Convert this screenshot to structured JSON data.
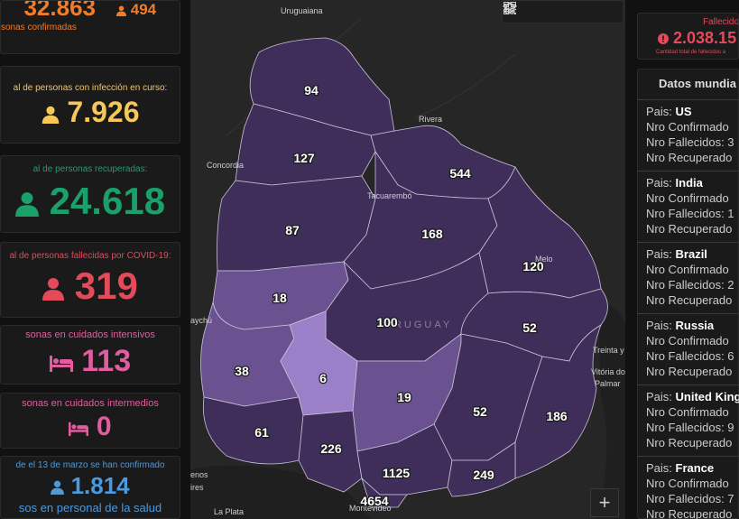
{
  "colors": {
    "confirmed": "#f07c2c",
    "active": "#f6c85a",
    "recovered": "#1aa06a",
    "deceased": "#e34a5a",
    "intensive": "#e05ea0",
    "intermediate": "#e05ea0",
    "health_staff": "#4a9ae0",
    "region_dark": "#3f2d5a",
    "region_mid": "#6a5290",
    "region_light": "#9a80c8"
  },
  "left": {
    "confirmed": {
      "value": "32.863",
      "side_value": "494",
      "caption": "sonas confirmadas",
      "icon": "person-icon"
    },
    "active": {
      "caption": "al de personas con infección en curso:",
      "value": "7.926",
      "icon": "person-icon"
    },
    "recovered": {
      "caption": "al de personas recuperadas:",
      "value": "24.618",
      "icon": "person-icon"
    },
    "deceased": {
      "caption": "al de personas fallecidas por COVID-19:",
      "value": "319",
      "icon": "person-icon"
    },
    "intensive": {
      "caption": "sonas en cuidados intensivos",
      "value": "113",
      "icon": "bed-icon"
    },
    "intermediate": {
      "caption": "sonas en cuidados intermedios",
      "value": "0",
      "icon": "bed-icon"
    },
    "health_staff": {
      "caption": "de el 13 de marzo se han confirmado",
      "value": "1.814",
      "caption2": "sos en personal de la salud",
      "icon": "person-icon"
    }
  },
  "map": {
    "place_labels": {
      "uruguaiana": "Uruguaiana",
      "rivera": "Rivera",
      "concordia": "Concordia",
      "tacuarembo": "Tacuarembó",
      "melo": "Melo",
      "country": "URUGUAY",
      "paysandu": "aychú",
      "treinta": "Treinta y",
      "vitoria": "Vitória do",
      "palmar": "Palmar",
      "buenos": "enos",
      "aires": "ires",
      "laplata": "La Plata",
      "montevideo": "Montevideo"
    },
    "counts": {
      "artigas": "94",
      "salto": "127",
      "rivera": "544",
      "paysandu": "87",
      "tacuarembo": "168",
      "cerrolargo": "120",
      "rionegro": "18",
      "durazno": "100",
      "treintaytres": "52",
      "soriano": "38",
      "flores": "6",
      "florida": "19",
      "lavalleja": "52",
      "rocha": "186",
      "colonia": "61",
      "sanjose": "226",
      "canelones": "1125",
      "maldonado": "249",
      "montevideo": "4654"
    },
    "toolbar": [
      "home-icon",
      "list-icon",
      "layers-icon",
      "qr-icon"
    ],
    "zoom_in_label": "+"
  },
  "right": {
    "deaths": {
      "caption": "Fallecido",
      "value": "2.038.15",
      "sub": "Cantidad total de fallecidos a",
      "icon": "alert-icon"
    },
    "world_title": "Datos mundia",
    "countries": [
      {
        "label": "Pais: ",
        "name": "US",
        "l1": "Nro Confirmado",
        "l2": "Nro Fallecidos: 3",
        "l3": "Nro Recuperado"
      },
      {
        "label": "Pais: ",
        "name": "India",
        "l1": "Nro Confirmado",
        "l2": "Nro Fallecidos: 1",
        "l3": "Nro Recuperado"
      },
      {
        "label": "Pais: ",
        "name": "Brazil",
        "l1": "Nro Confirmado",
        "l2": "Nro Fallecidos: 2",
        "l3": "Nro Recuperado"
      },
      {
        "label": "Pais: ",
        "name": "Russia",
        "l1": "Nro Confirmado",
        "l2": "Nro Fallecidos: 6",
        "l3": "Nro Recuperado"
      },
      {
        "label": "Pais: ",
        "name": "United King",
        "l1": "Nro Confirmado",
        "l2": "Nro Fallecidos: 9",
        "l3": "Nro Recuperado"
      },
      {
        "label": "Pais: ",
        "name": "France",
        "l1": "Nro Confirmado",
        "l2": "Nro Fallecidos: 7",
        "l3": "Nro Recuperado"
      }
    ]
  }
}
